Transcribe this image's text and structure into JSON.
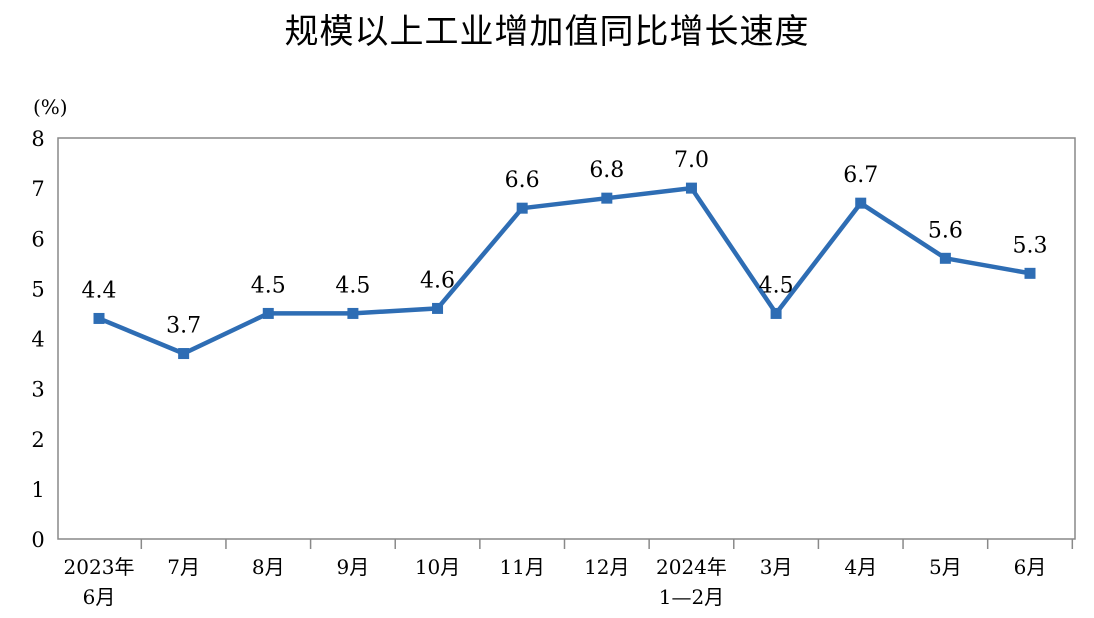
{
  "chart_data": {
    "type": "line",
    "title": "规模以上工业增加值同比增长速度",
    "ylabel": "(%)",
    "xlabel": "",
    "ylim": [
      0,
      8
    ],
    "yticks": [
      "0",
      "1",
      "2",
      "3",
      "4",
      "5",
      "6",
      "7",
      "8"
    ],
    "grid": false,
    "categories": [
      [
        "2023年",
        "6月"
      ],
      [
        "7月"
      ],
      [
        "8月"
      ],
      [
        "9月"
      ],
      [
        "10月"
      ],
      [
        "11月"
      ],
      [
        "12月"
      ],
      [
        "2024年",
        "1—2月"
      ],
      [
        "3月"
      ],
      [
        "4月"
      ],
      [
        "5月"
      ],
      [
        "6月"
      ]
    ],
    "series": [
      {
        "values": [
          4.4,
          3.7,
          4.5,
          4.5,
          4.6,
          6.6,
          6.8,
          7.0,
          4.5,
          6.7,
          5.6,
          5.3
        ],
        "labels": [
          "4.4",
          "3.7",
          "4.5",
          "4.5",
          "4.6",
          "6.6",
          "6.8",
          "7.0",
          "4.5",
          "6.7",
          "5.6",
          "5.3"
        ],
        "color": "#2E6DB4"
      }
    ]
  }
}
